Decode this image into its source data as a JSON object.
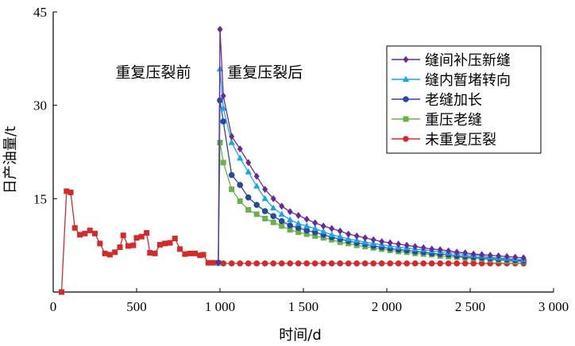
{
  "chart_data": {
    "type": "line",
    "title": "",
    "xlabel": "时间/d",
    "ylabel": "日产油量/t",
    "xlim": [
      0,
      3000
    ],
    "ylim": [
      0,
      45
    ],
    "x_ticks": [
      0,
      500,
      1000,
      1500,
      2000,
      2500,
      3000
    ],
    "x_tick_labels": [
      "0",
      "500",
      "1 000",
      "1 500",
      "2 000",
      "2 500",
      "3 000"
    ],
    "y_ticks": [
      15,
      30,
      45
    ],
    "y_tick_labels": [
      "15",
      "30",
      "45"
    ],
    "grid": false,
    "legend_position": "top-right",
    "annotations": [
      {
        "text": "重复压裂前",
        "x": 600,
        "y": 34.5
      },
      {
        "text": "重复压裂后",
        "x": 1270,
        "y": 34.5
      }
    ],
    "series": [
      {
        "name": "缝间补压新缝",
        "color": "#6a2a96",
        "marker": "diamond",
        "points": [
          [
            990,
            4.7
          ],
          [
            1000,
            42.2
          ],
          [
            1020,
            31.5
          ],
          [
            1070,
            25.0
          ],
          [
            1120,
            23.0
          ],
          [
            1170,
            20.8
          ],
          [
            1220,
            18.6
          ],
          [
            1270,
            16.5
          ],
          [
            1320,
            15.0
          ],
          [
            1370,
            13.8
          ],
          [
            1420,
            12.9
          ],
          [
            1470,
            12.3
          ],
          [
            1520,
            11.7
          ],
          [
            1570,
            11.1
          ],
          [
            1620,
            10.6
          ],
          [
            1670,
            10.2
          ],
          [
            1720,
            9.8
          ],
          [
            1770,
            9.3
          ],
          [
            1820,
            9.0
          ],
          [
            1870,
            8.7
          ],
          [
            1920,
            8.4
          ],
          [
            1970,
            8.1
          ],
          [
            2020,
            7.9
          ],
          [
            2070,
            7.7
          ],
          [
            2120,
            7.5
          ],
          [
            2170,
            7.3
          ],
          [
            2220,
            7.1
          ],
          [
            2270,
            6.9
          ],
          [
            2320,
            6.8
          ],
          [
            2370,
            6.6
          ],
          [
            2420,
            6.4
          ],
          [
            2470,
            6.3
          ],
          [
            2520,
            6.1
          ],
          [
            2570,
            6.0
          ],
          [
            2620,
            5.9
          ],
          [
            2670,
            5.8
          ],
          [
            2720,
            5.7
          ],
          [
            2770,
            5.6
          ],
          [
            2820,
            5.5
          ]
        ]
      },
      {
        "name": "缝内暂堵转向",
        "color": "#1aa6e6",
        "marker": "triangle",
        "points": [
          [
            990,
            4.7
          ],
          [
            1000,
            35.8
          ],
          [
            1020,
            29.5
          ],
          [
            1070,
            24.0
          ],
          [
            1120,
            21.5
          ],
          [
            1170,
            19.3
          ],
          [
            1220,
            17.0
          ],
          [
            1270,
            15.0
          ],
          [
            1320,
            13.5
          ],
          [
            1370,
            12.5
          ],
          [
            1420,
            11.6
          ],
          [
            1470,
            11.0
          ],
          [
            1520,
            10.6
          ],
          [
            1570,
            10.2
          ],
          [
            1620,
            9.7
          ],
          [
            1670,
            9.2
          ],
          [
            1720,
            8.9
          ],
          [
            1770,
            8.5
          ],
          [
            1820,
            8.3
          ],
          [
            1870,
            8.0
          ],
          [
            1920,
            7.8
          ],
          [
            1970,
            7.6
          ],
          [
            2020,
            7.4
          ],
          [
            2070,
            7.2
          ],
          [
            2120,
            7.1
          ],
          [
            2170,
            6.9
          ],
          [
            2220,
            6.8
          ],
          [
            2270,
            6.6
          ],
          [
            2320,
            6.5
          ],
          [
            2370,
            6.3
          ],
          [
            2420,
            6.2
          ],
          [
            2470,
            6.0
          ],
          [
            2520,
            5.9
          ],
          [
            2570,
            5.8
          ],
          [
            2620,
            5.6
          ],
          [
            2670,
            5.5
          ],
          [
            2720,
            5.4
          ],
          [
            2770,
            5.3
          ],
          [
            2820,
            5.2
          ]
        ]
      },
      {
        "name": "老缝加长",
        "color": "#27489c",
        "marker": "circle",
        "points": [
          [
            990,
            4.7
          ],
          [
            1000,
            30.8
          ],
          [
            1020,
            27.4
          ],
          [
            1070,
            18.8
          ],
          [
            1120,
            17.2
          ],
          [
            1170,
            15.2
          ],
          [
            1220,
            14.0
          ],
          [
            1270,
            13.0
          ],
          [
            1320,
            12.2
          ],
          [
            1370,
            11.4
          ],
          [
            1420,
            10.7
          ],
          [
            1470,
            10.3
          ],
          [
            1520,
            9.9
          ],
          [
            1570,
            9.6
          ],
          [
            1620,
            9.2
          ],
          [
            1670,
            8.8
          ],
          [
            1720,
            8.5
          ],
          [
            1770,
            8.2
          ],
          [
            1820,
            7.9
          ],
          [
            1870,
            7.7
          ],
          [
            1920,
            7.4
          ],
          [
            1970,
            7.2
          ],
          [
            2020,
            7.0
          ],
          [
            2070,
            6.8
          ],
          [
            2120,
            6.7
          ],
          [
            2170,
            6.5
          ],
          [
            2220,
            6.4
          ],
          [
            2270,
            6.2
          ],
          [
            2320,
            6.1
          ],
          [
            2370,
            6.0
          ],
          [
            2420,
            5.8
          ],
          [
            2470,
            5.7
          ],
          [
            2520,
            5.6
          ],
          [
            2570,
            5.5
          ],
          [
            2620,
            5.4
          ],
          [
            2670,
            5.3
          ],
          [
            2720,
            5.2
          ],
          [
            2770,
            5.1
          ],
          [
            2820,
            5.0
          ]
        ]
      },
      {
        "name": "重压老缝",
        "color": "#6ab04c",
        "marker": "square",
        "points": [
          [
            990,
            4.7
          ],
          [
            1000,
            24.0
          ],
          [
            1020,
            20.8
          ],
          [
            1070,
            16.5
          ],
          [
            1120,
            14.6
          ],
          [
            1170,
            13.2
          ],
          [
            1220,
            12.5
          ],
          [
            1270,
            11.8
          ],
          [
            1320,
            11.2
          ],
          [
            1370,
            10.6
          ],
          [
            1420,
            10.0
          ],
          [
            1470,
            9.6
          ],
          [
            1520,
            9.3
          ],
          [
            1570,
            9.0
          ],
          [
            1620,
            8.7
          ],
          [
            1670,
            8.4
          ],
          [
            1720,
            8.0
          ],
          [
            1770,
            7.8
          ],
          [
            1820,
            7.5
          ],
          [
            1870,
            7.3
          ],
          [
            1920,
            7.1
          ],
          [
            1970,
            6.9
          ],
          [
            2020,
            6.7
          ],
          [
            2070,
            6.5
          ],
          [
            2120,
            6.4
          ],
          [
            2170,
            6.2
          ],
          [
            2220,
            6.1
          ],
          [
            2270,
            6.0
          ],
          [
            2320,
            5.8
          ],
          [
            2370,
            5.7
          ],
          [
            2420,
            5.6
          ],
          [
            2470,
            5.5
          ],
          [
            2520,
            5.4
          ],
          [
            2570,
            5.3
          ],
          [
            2620,
            5.2
          ],
          [
            2670,
            5.1
          ],
          [
            2720,
            5.0
          ],
          [
            2770,
            4.9
          ],
          [
            2820,
            4.9
          ]
        ]
      },
      {
        "name": "未重复压裂",
        "color": "#d42a2a",
        "marker": "circle",
        "points": [
          [
            990,
            4.7
          ],
          [
            1020,
            4.6
          ],
          [
            1070,
            4.6
          ],
          [
            1120,
            4.6
          ],
          [
            1170,
            4.6
          ],
          [
            1220,
            4.6
          ],
          [
            1270,
            4.6
          ],
          [
            1320,
            4.6
          ],
          [
            1370,
            4.6
          ],
          [
            1420,
            4.6
          ],
          [
            1470,
            4.6
          ],
          [
            1520,
            4.6
          ],
          [
            1570,
            4.6
          ],
          [
            1620,
            4.6
          ],
          [
            1670,
            4.6
          ],
          [
            1720,
            4.6
          ],
          [
            1770,
            4.6
          ],
          [
            1820,
            4.6
          ],
          [
            1870,
            4.6
          ],
          [
            1920,
            4.6
          ],
          [
            1970,
            4.6
          ],
          [
            2020,
            4.6
          ],
          [
            2070,
            4.6
          ],
          [
            2120,
            4.6
          ],
          [
            2170,
            4.6
          ],
          [
            2220,
            4.6
          ],
          [
            2270,
            4.6
          ],
          [
            2320,
            4.6
          ],
          [
            2370,
            4.6
          ],
          [
            2420,
            4.6
          ],
          [
            2470,
            4.6
          ],
          [
            2520,
            4.6
          ],
          [
            2570,
            4.6
          ],
          [
            2620,
            4.6
          ],
          [
            2670,
            4.6
          ],
          [
            2720,
            4.6
          ],
          [
            2770,
            4.6
          ],
          [
            2820,
            4.6
          ]
        ]
      },
      {
        "name": "",
        "color": "#d42a2a",
        "marker": "square",
        "points": [
          [
            50,
            0.0
          ],
          [
            80,
            16.2
          ],
          [
            105,
            16.0
          ],
          [
            130,
            10.3
          ],
          [
            160,
            9.2
          ],
          [
            190,
            9.4
          ],
          [
            220,
            9.9
          ],
          [
            250,
            9.4
          ],
          [
            280,
            7.8
          ],
          [
            310,
            6.2
          ],
          [
            340,
            6.0
          ],
          [
            370,
            6.4
          ],
          [
            400,
            7.2
          ],
          [
            420,
            9.1
          ],
          [
            450,
            7.4
          ],
          [
            480,
            7.5
          ],
          [
            500,
            8.7
          ],
          [
            530,
            8.9
          ],
          [
            560,
            9.5
          ],
          [
            580,
            6.3
          ],
          [
            610,
            6.2
          ],
          [
            640,
            7.6
          ],
          [
            670,
            7.8
          ],
          [
            700,
            7.9
          ],
          [
            730,
            8.6
          ],
          [
            760,
            6.9
          ],
          [
            790,
            6.1
          ],
          [
            820,
            6.2
          ],
          [
            850,
            6.2
          ],
          [
            880,
            5.9
          ],
          [
            900,
            6.0
          ],
          [
            930,
            4.7
          ],
          [
            960,
            4.7
          ],
          [
            990,
            4.7
          ]
        ]
      }
    ]
  }
}
